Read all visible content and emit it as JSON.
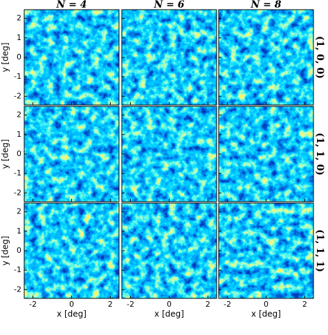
{
  "columns": [
    "N = 4",
    "N = 6",
    "N = 8"
  ],
  "rows": [
    "(1, 0, 0)",
    "(1, 1, 0)",
    "(1, 1, 1)"
  ],
  "axes": {
    "xlabel": "x [deg]",
    "ylabel": "y [deg]",
    "xlim": [
      -2.45,
      2.45
    ],
    "ylim": [
      -2.45,
      2.45
    ],
    "xticks": [
      -2,
      0,
      2
    ],
    "yticks": [
      -2,
      -1,
      0,
      1,
      2
    ]
  }
}
